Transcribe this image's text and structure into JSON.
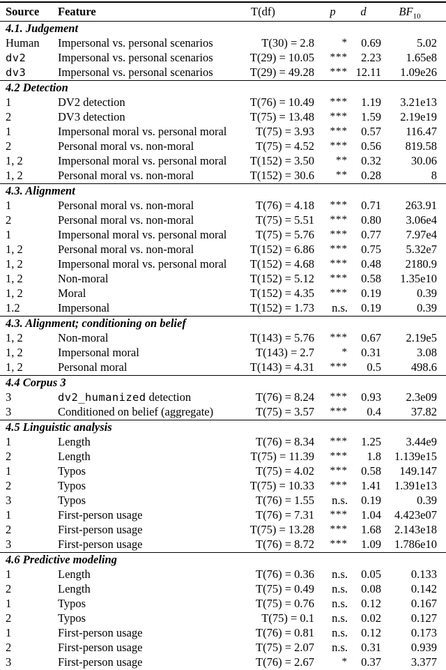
{
  "page": {
    "background_color": "#ffffff",
    "text_color": "#000000"
  },
  "table": {
    "header": {
      "source": "Source",
      "feature": "Feature",
      "t": "T(df)",
      "p": "p",
      "d": "d",
      "bf_base": "BF",
      "bf_sub": "10"
    },
    "sections": [
      {
        "title": "4.1. Judgement",
        "rows": [
          {
            "source": "Human",
            "feature": "Impersonal vs. personal scenarios",
            "t": "T(30) = 2.8",
            "p": "*",
            "d": "0.69",
            "bf": "5.02"
          },
          {
            "source": "dv2",
            "source_mono": true,
            "feature": "Impersonal vs. personal scenarios",
            "t": "T(29) = 10.05",
            "p": "***",
            "d": "2.23",
            "bf": "1.65e8"
          },
          {
            "source": "dv3",
            "source_mono": true,
            "feature": "Impersonal vs. personal scenarios",
            "t": "T(29) = 49.28",
            "p": "***",
            "d": "12.11",
            "bf": "1.09e26"
          }
        ]
      },
      {
        "title": "4.2 Detection",
        "rows": [
          {
            "source": "1",
            "feature": "DV2 detection",
            "t": "T(76) = 10.49",
            "p": "***",
            "d": "1.19",
            "bf": "3.21e13"
          },
          {
            "source": "2",
            "feature": "DV3 detection",
            "t": "T(75) = 13.48",
            "p": "***",
            "d": "1.59",
            "bf": "2.19e19"
          },
          {
            "source": "1",
            "feature": "Impersonal moral vs. personal moral",
            "t": "T(75) = 3.93",
            "p": "***",
            "d": "0.57",
            "bf": "116.47"
          },
          {
            "source": "2",
            "feature": "Personal moral vs. non-moral",
            "t": "T(75) = 4.52",
            "p": "***",
            "d": "0.56",
            "bf": "819.58"
          },
          {
            "source": "1, 2",
            "feature": "Impersonal moral vs. personal moral",
            "t": "T(152) = 3.50",
            "p": "**",
            "d": "0.32",
            "bf": "30.06"
          },
          {
            "source": "1, 2",
            "feature": "Personal moral vs. non-moral",
            "t": "T(152) = 30.6",
            "p": "**",
            "d": "0.28",
            "bf": "8"
          }
        ]
      },
      {
        "title": "4.3. Alignment",
        "rows": [
          {
            "source": "1",
            "feature": "Personal moral vs. non-moral",
            "t": "T(76) = 4.18",
            "p": "***",
            "d": "0.71",
            "bf": "263.91"
          },
          {
            "source": "2",
            "feature": "Personal moral vs. non-moral",
            "t": "T(75) = 5.51",
            "p": "***",
            "d": "0.80",
            "bf": "3.06e4"
          },
          {
            "source": "1",
            "feature": "Impersonal moral vs. personal moral",
            "t": "T(75) = 5.76",
            "p": "***",
            "d": "0.77",
            "bf": "7.97e4"
          },
          {
            "source": "1, 2",
            "feature": "Personal moral vs. non-moral",
            "t": "T(152) = 6.86",
            "p": "***",
            "d": "0.75",
            "bf": "5.32e7"
          },
          {
            "source": "1, 2",
            "feature": "Impersonal moral vs. personal moral",
            "t": "T(152) = 4.68",
            "p": "***",
            "d": "0.48",
            "bf": "2180.9"
          },
          {
            "source": "1, 2",
            "feature": "Non-moral",
            "t": "T(152) = 5.12",
            "p": "***",
            "d": "0.58",
            "bf": "1.35e10"
          },
          {
            "source": "1, 2",
            "feature": "Moral",
            "t": "T(152) = 4.35",
            "p": "***",
            "d": "0.19",
            "bf": "0.39"
          },
          {
            "source": "1.2",
            "feature": "Impersonal",
            "t": "T(152) = 1.73",
            "p": "n.s.",
            "d": "0.19",
            "bf": "0.39"
          }
        ]
      },
      {
        "title": "4.3. Alignment; conditioning on belief",
        "rows": [
          {
            "source": "1, 2",
            "feature": "Non-moral",
            "t": "T(143) = 5.76",
            "p": "***",
            "d": "0.67",
            "bf": "2.19e5"
          },
          {
            "source": "1, 2",
            "feature": "Impersonal moral",
            "t": "T(143) = 2.7",
            "p": "*",
            "d": "0.31",
            "bf": "3.08"
          },
          {
            "source": "1, 2",
            "feature": "Personal moral",
            "t": "T(143) = 4.31",
            "p": "***",
            "d": "0.5",
            "bf": "498.6"
          }
        ]
      },
      {
        "title": "4.4 Corpus 3",
        "rows": [
          {
            "source": "3",
            "feature": "detection",
            "feature_mono_prefix": "dv2_humanized",
            "t": "T(76) = 8.24",
            "p": "***",
            "d": "0.93",
            "bf": "2.3e09"
          },
          {
            "source": "3",
            "feature": "Conditioned on belief (aggregate)",
            "t": "T(75) = 3.57",
            "p": "***",
            "d": "0.4",
            "bf": "37.82"
          }
        ]
      },
      {
        "title": "4.5 Linguistic analysis",
        "rows": [
          {
            "source": "1",
            "feature": "Length",
            "t": "T(76) = 8.34",
            "p": "***",
            "d": "1.25",
            "bf": "3.44e9"
          },
          {
            "source": "2",
            "feature": "Length",
            "t": "T(75) = 11.39",
            "p": "***",
            "d": "1.8",
            "bf": "1.139e15"
          },
          {
            "source": "1",
            "feature": "Typos",
            "t": "T(75) = 4.02",
            "p": "***",
            "d": "0.58",
            "bf": "149.147"
          },
          {
            "source": "2",
            "feature": "Typos",
            "t": "T(75) = 10.33",
            "p": "***",
            "d": "1.41",
            "bf": "1.391e13"
          },
          {
            "source": "3",
            "feature": "Typos",
            "t": "T(76) = 1.55",
            "p": "n.s.",
            "d": "0.19",
            "bf": "0.39"
          },
          {
            "source": "1",
            "feature": "First-person usage",
            "t": "T(76) = 7.31",
            "p": "***",
            "d": "1.04",
            "bf": "4.423e07"
          },
          {
            "source": "2",
            "feature": "First-person usage",
            "t": "T(75) = 13.28",
            "p": "***",
            "d": "1.68",
            "bf": "2.143e18"
          },
          {
            "source": "3",
            "feature": "First-person usage",
            "t": "T(76) = 8.72",
            "p": "***",
            "d": "1.09",
            "bf": "1.786e10"
          }
        ]
      },
      {
        "title": "4.6 Predictive modeling",
        "rows": [
          {
            "source": "1",
            "feature": "Length",
            "t": "T(76) = 0.36",
            "p": "n.s.",
            "d": "0.05",
            "bf": "0.133"
          },
          {
            "source": "2",
            "feature": "Length",
            "t": "T(75) = 0.49",
            "p": "n.s.",
            "d": "0.08",
            "bf": "0.142"
          },
          {
            "source": "1",
            "feature": "Typos",
            "t": "T(75) = 0.76",
            "p": "n.s.",
            "d": "0.12",
            "bf": "0.167"
          },
          {
            "source": "2",
            "feature": "Typos",
            "t": "T(75) = 0.1",
            "p": "n.s.",
            "d": "0.02",
            "bf": "0.127"
          },
          {
            "source": "1",
            "feature": "First-person usage",
            "t": "T(76) = 0.81",
            "p": "n.s.",
            "d": "0.12",
            "bf": "0.173"
          },
          {
            "source": "2",
            "feature": "First-person usage",
            "t": "T(75) = 2.07",
            "p": "n.s.",
            "d": "0.31",
            "bf": "0.939"
          },
          {
            "source": "3",
            "feature": "First-person usage",
            "t": "T(76) = 2.67",
            "p": "*",
            "d": "0.37",
            "bf": "3.377"
          }
        ]
      }
    ]
  }
}
